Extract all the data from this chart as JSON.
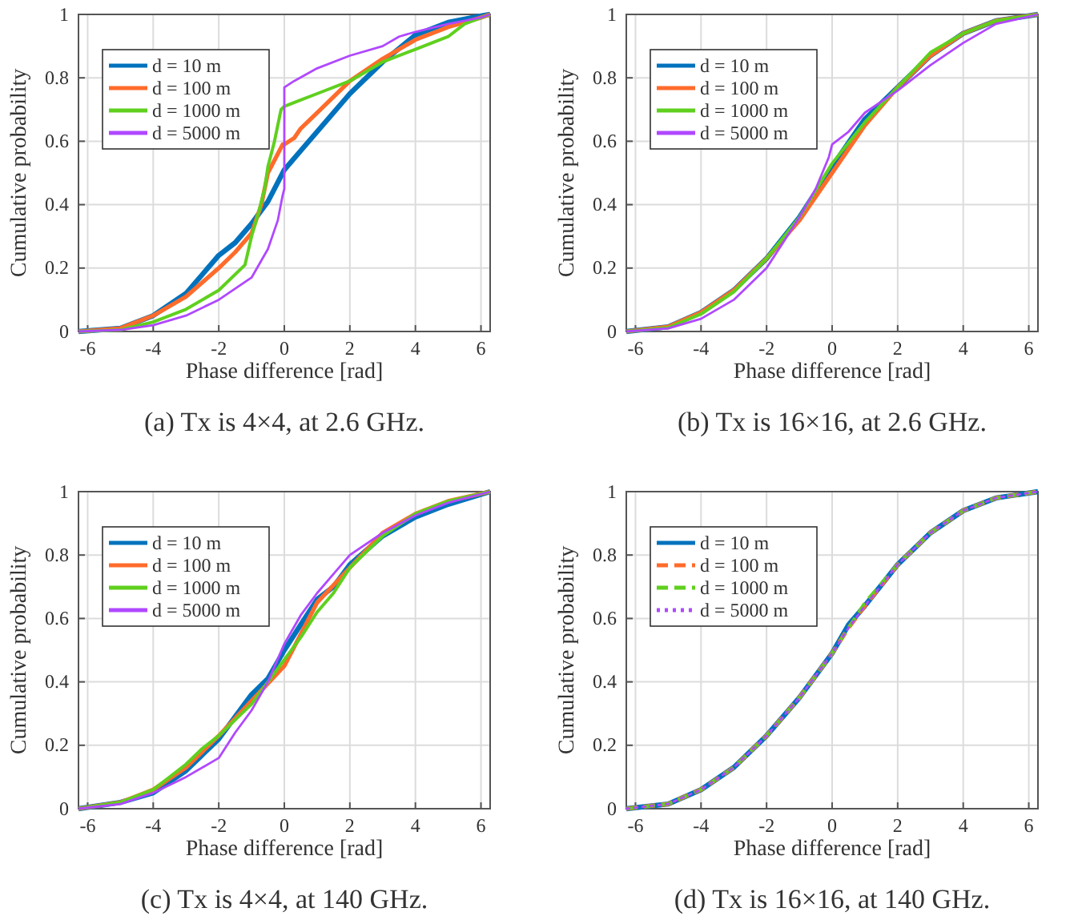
{
  "chart_data": [
    {
      "type": "line",
      "title": "(a) Tx is 4×4, at 2.6 GHz.",
      "xlabel": "Phase difference [rad]",
      "ylabel": "Cumulative probability",
      "xlim": [
        -6.28,
        6.28
      ],
      "ylim": [
        0,
        1
      ],
      "xticks": [
        -6,
        -4,
        -2,
        0,
        2,
        4,
        6
      ],
      "yticks": [
        0,
        0.2,
        0.4,
        0.6,
        0.8,
        1
      ],
      "grid": true,
      "legend": "top left",
      "line_style": "solid",
      "series": [
        {
          "name": "d = 10 m",
          "color": "#0072bd",
          "x": [
            -6.28,
            -5,
            -4,
            -3,
            -2.5,
            -2,
            -1.5,
            -1,
            -0.5,
            0,
            0.5,
            1,
            2,
            3,
            4,
            5,
            6,
            6.28
          ],
          "values": [
            0,
            0.01,
            0.05,
            0.12,
            0.18,
            0.24,
            0.28,
            0.34,
            0.41,
            0.51,
            0.57,
            0.63,
            0.75,
            0.85,
            0.935,
            0.975,
            0.995,
            1
          ]
        },
        {
          "name": "d = 100 m",
          "color": "#ff6b2b",
          "x": [
            -6.28,
            -5,
            -4,
            -3,
            -2,
            -1.5,
            -1,
            -0.7,
            -0.5,
            -0.2,
            -0.05,
            0,
            0.3,
            0.5,
            1,
            2,
            3,
            4,
            5,
            6,
            6.28
          ],
          "values": [
            0,
            0.01,
            0.05,
            0.11,
            0.2,
            0.25,
            0.31,
            0.4,
            0.5,
            0.56,
            0.59,
            0.59,
            0.61,
            0.64,
            0.69,
            0.79,
            0.86,
            0.92,
            0.96,
            0.99,
            1
          ]
        },
        {
          "name": "d = 1000 m",
          "color": "#5fd01e",
          "x": [
            -6.28,
            -5,
            -4,
            -3,
            -2,
            -1.2,
            -1,
            -0.8,
            -0.6,
            -0.5,
            -0.3,
            -0.2,
            -0.1,
            0,
            0.5,
            1,
            2,
            3,
            4,
            5,
            5.5,
            6.28
          ],
          "values": [
            0,
            0.005,
            0.03,
            0.07,
            0.13,
            0.21,
            0.3,
            0.37,
            0.45,
            0.52,
            0.6,
            0.65,
            0.7,
            0.71,
            0.73,
            0.75,
            0.79,
            0.85,
            0.89,
            0.93,
            0.97,
            1
          ]
        },
        {
          "name": "d = 5000 m",
          "color": "#b048ff",
          "x": [
            -6.28,
            -5,
            -4,
            -3,
            -2,
            -1,
            -0.5,
            -0.2,
            -0.05,
            0,
            0,
            0.3,
            1,
            2,
            3,
            3.5,
            4,
            5,
            6,
            6.28
          ],
          "values": [
            0,
            0.005,
            0.02,
            0.05,
            0.1,
            0.17,
            0.26,
            0.35,
            0.43,
            0.45,
            0.77,
            0.79,
            0.83,
            0.87,
            0.9,
            0.93,
            0.945,
            0.97,
            0.99,
            1
          ]
        }
      ]
    },
    {
      "type": "line",
      "title": "(b) Tx is 16×16, at 2.6 GHz.",
      "xlabel": "Phase difference [rad]",
      "ylabel": "Cumulative probability",
      "xlim": [
        -6.28,
        6.28
      ],
      "ylim": [
        0,
        1
      ],
      "xticks": [
        -6,
        -4,
        -2,
        0,
        2,
        4,
        6
      ],
      "yticks": [
        0,
        0.2,
        0.4,
        0.6,
        0.8,
        1
      ],
      "grid": true,
      "legend": "top left",
      "line_style": "solid",
      "series": [
        {
          "name": "d = 10 m",
          "color": "#0072bd",
          "x": [
            -6.28,
            -5,
            -4,
            -3,
            -2,
            -1,
            0,
            1,
            2,
            3,
            4,
            5,
            6.28
          ],
          "values": [
            0,
            0.015,
            0.06,
            0.13,
            0.23,
            0.36,
            0.52,
            0.67,
            0.77,
            0.87,
            0.94,
            0.98,
            1
          ]
        },
        {
          "name": "d = 100 m",
          "color": "#ff6b2b",
          "x": [
            -6.28,
            -5,
            -4,
            -3,
            -2,
            -1,
            0,
            1,
            2,
            3,
            4,
            5,
            6.28
          ],
          "values": [
            0,
            0.015,
            0.06,
            0.13,
            0.23,
            0.35,
            0.5,
            0.65,
            0.77,
            0.87,
            0.94,
            0.98,
            1
          ]
        },
        {
          "name": "d = 1000 m",
          "color": "#5fd01e",
          "x": [
            -6.28,
            -5,
            -4,
            -3,
            -2,
            -1,
            0,
            1,
            2,
            3,
            4,
            5,
            6.28
          ],
          "values": [
            0,
            0.012,
            0.055,
            0.125,
            0.23,
            0.36,
            0.53,
            0.66,
            0.77,
            0.88,
            0.94,
            0.98,
            1
          ]
        },
        {
          "name": "d = 5000 m",
          "color": "#b048ff",
          "x": [
            -6.28,
            -5,
            -4,
            -3,
            -2,
            -1.5,
            -1,
            -0.5,
            -0.1,
            0,
            0.5,
            1,
            2,
            3,
            4,
            5,
            6.28
          ],
          "values": [
            0,
            0.01,
            0.04,
            0.1,
            0.2,
            0.28,
            0.36,
            0.45,
            0.55,
            0.59,
            0.63,
            0.69,
            0.76,
            0.84,
            0.91,
            0.97,
            1
          ]
        }
      ]
    },
    {
      "type": "line",
      "title": "(c) Tx is 4×4, at 140 GHz.",
      "xlabel": "Phase difference [rad]",
      "ylabel": "Cumulative probability",
      "xlim": [
        -6.28,
        6.28
      ],
      "ylim": [
        0,
        1
      ],
      "xticks": [
        -6,
        -4,
        -2,
        0,
        2,
        4,
        6
      ],
      "yticks": [
        0,
        0.2,
        0.4,
        0.6,
        0.8,
        1
      ],
      "grid": true,
      "legend": "top left",
      "line_style": "solid",
      "series": [
        {
          "name": "d = 10 m",
          "color": "#0072bd",
          "x": [
            -6.28,
            -5,
            -4,
            -3,
            -2,
            -1,
            -0.5,
            0,
            0.5,
            1,
            1.5,
            2,
            3,
            4,
            5,
            6.28
          ],
          "values": [
            0,
            0.02,
            0.05,
            0.12,
            0.22,
            0.36,
            0.41,
            0.5,
            0.58,
            0.66,
            0.7,
            0.77,
            0.86,
            0.92,
            0.96,
            1
          ]
        },
        {
          "name": "d = 100 m",
          "color": "#ff6b2b",
          "x": [
            -6.28,
            -5,
            -4,
            -3,
            -2,
            -1,
            0,
            0.5,
            1,
            2,
            3,
            4,
            5,
            6.28
          ],
          "values": [
            0,
            0.02,
            0.06,
            0.13,
            0.23,
            0.34,
            0.45,
            0.55,
            0.65,
            0.76,
            0.87,
            0.93,
            0.97,
            1
          ]
        },
        {
          "name": "d = 1000 m",
          "color": "#5fd01e",
          "x": [
            -6.28,
            -5,
            -4,
            -3,
            -2.5,
            -2,
            -1,
            0,
            0.5,
            1,
            1.5,
            2,
            3,
            4,
            5,
            6.28
          ],
          "values": [
            0,
            0.02,
            0.06,
            0.14,
            0.19,
            0.23,
            0.33,
            0.47,
            0.54,
            0.62,
            0.68,
            0.76,
            0.86,
            0.93,
            0.97,
            1
          ]
        },
        {
          "name": "d = 5000 m",
          "color": "#b048ff",
          "x": [
            -6.28,
            -5,
            -4,
            -3,
            -2,
            -1.5,
            -1,
            -0.5,
            0,
            0.5,
            1,
            1.5,
            2,
            3,
            4,
            5,
            6.28
          ],
          "values": [
            0,
            0.015,
            0.05,
            0.1,
            0.16,
            0.24,
            0.31,
            0.4,
            0.52,
            0.61,
            0.68,
            0.74,
            0.8,
            0.87,
            0.925,
            0.965,
            1
          ]
        }
      ]
    },
    {
      "type": "line",
      "title": "(d) Tx is 16×16, at 140 GHz.",
      "xlabel": "Phase difference [rad]",
      "ylabel": "Cumulative probability",
      "xlim": [
        -6.28,
        6.28
      ],
      "ylim": [
        0,
        1
      ],
      "xticks": [
        -6,
        -4,
        -2,
        0,
        2,
        4,
        6
      ],
      "yticks": [
        0,
        0.2,
        0.4,
        0.6,
        0.8,
        1
      ],
      "grid": true,
      "legend": "top left",
      "series": [
        {
          "name": "d = 10 m",
          "color": "#0072bd",
          "line_style": "solid",
          "x": [
            -6.28,
            -5,
            -4,
            -3,
            -2,
            -1,
            0,
            0.5,
            1,
            2,
            3,
            4,
            5,
            6.28
          ],
          "values": [
            0,
            0.015,
            0.06,
            0.13,
            0.23,
            0.35,
            0.49,
            0.58,
            0.64,
            0.77,
            0.87,
            0.94,
            0.98,
            1
          ]
        },
        {
          "name": "d = 100 m",
          "color": "#ff6b2b",
          "line_style": "dashed",
          "x": [
            -6.28,
            -5,
            -4,
            -3,
            -2,
            -1,
            0,
            0.5,
            1,
            2,
            3,
            4,
            5,
            6.28
          ],
          "values": [
            0,
            0.015,
            0.06,
            0.13,
            0.23,
            0.35,
            0.49,
            0.57,
            0.64,
            0.77,
            0.87,
            0.94,
            0.98,
            1
          ]
        },
        {
          "name": "d = 1000 m",
          "color": "#5fd01e",
          "line_style": "dashed",
          "x": [
            -6.28,
            -5,
            -4,
            -3,
            -2,
            -1,
            0,
            0.5,
            1,
            2,
            3,
            4,
            5,
            6.28
          ],
          "values": [
            0,
            0.015,
            0.06,
            0.13,
            0.23,
            0.35,
            0.49,
            0.57,
            0.65,
            0.77,
            0.87,
            0.94,
            0.98,
            1
          ]
        },
        {
          "name": "d = 5000 m",
          "color": "#b048ff",
          "line_style": "dotted",
          "x": [
            -6.28,
            -5,
            -4,
            -3,
            -2,
            -1,
            0,
            0.5,
            1,
            2,
            3,
            4,
            5,
            6.28
          ],
          "values": [
            0,
            0.015,
            0.06,
            0.13,
            0.23,
            0.35,
            0.49,
            0.57,
            0.64,
            0.77,
            0.87,
            0.94,
            0.98,
            1
          ]
        }
      ]
    }
  ]
}
